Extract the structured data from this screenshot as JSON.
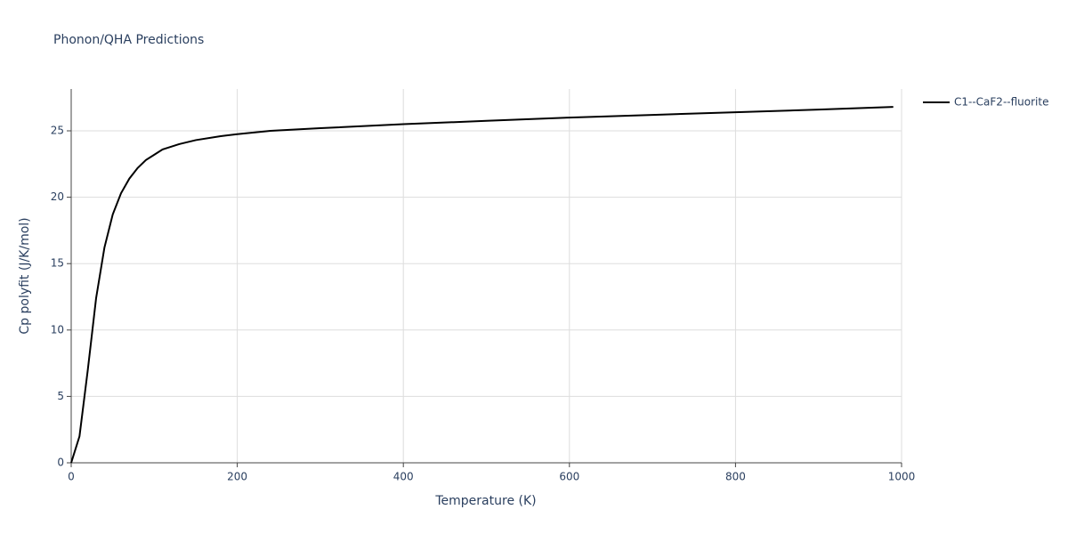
{
  "chart_data": {
    "type": "line",
    "title": "Phonon/QHA Predictions",
    "x_label": "Temperature (K)",
    "y_label": "Cp polyfit (J/K/mol)",
    "x": [
      0,
      10,
      20,
      30,
      40,
      50,
      60,
      70,
      80,
      90,
      100,
      110,
      120,
      130,
      150,
      180,
      200,
      240,
      300,
      400,
      500,
      600,
      700,
      800,
      900,
      990
    ],
    "series": [
      {
        "name": "C1--CaF2--fluorite",
        "color": "#000000",
        "values": [
          0,
          2.0,
          7.0,
          12.4,
          16.2,
          18.7,
          20.3,
          21.4,
          22.2,
          22.8,
          23.2,
          23.6,
          23.8,
          24.0,
          24.3,
          24.6,
          24.75,
          25.0,
          25.2,
          25.5,
          25.75,
          26.0,
          26.2,
          26.4,
          26.6,
          26.8
        ]
      }
    ],
    "xlim": [
      0,
      1000
    ],
    "ylim": [
      0,
      28.15
    ],
    "xticks": [
      0,
      200,
      400,
      600,
      800,
      1000
    ],
    "yticks": [
      0,
      5,
      10,
      15,
      20,
      25
    ],
    "grid": true,
    "legend": "right"
  }
}
